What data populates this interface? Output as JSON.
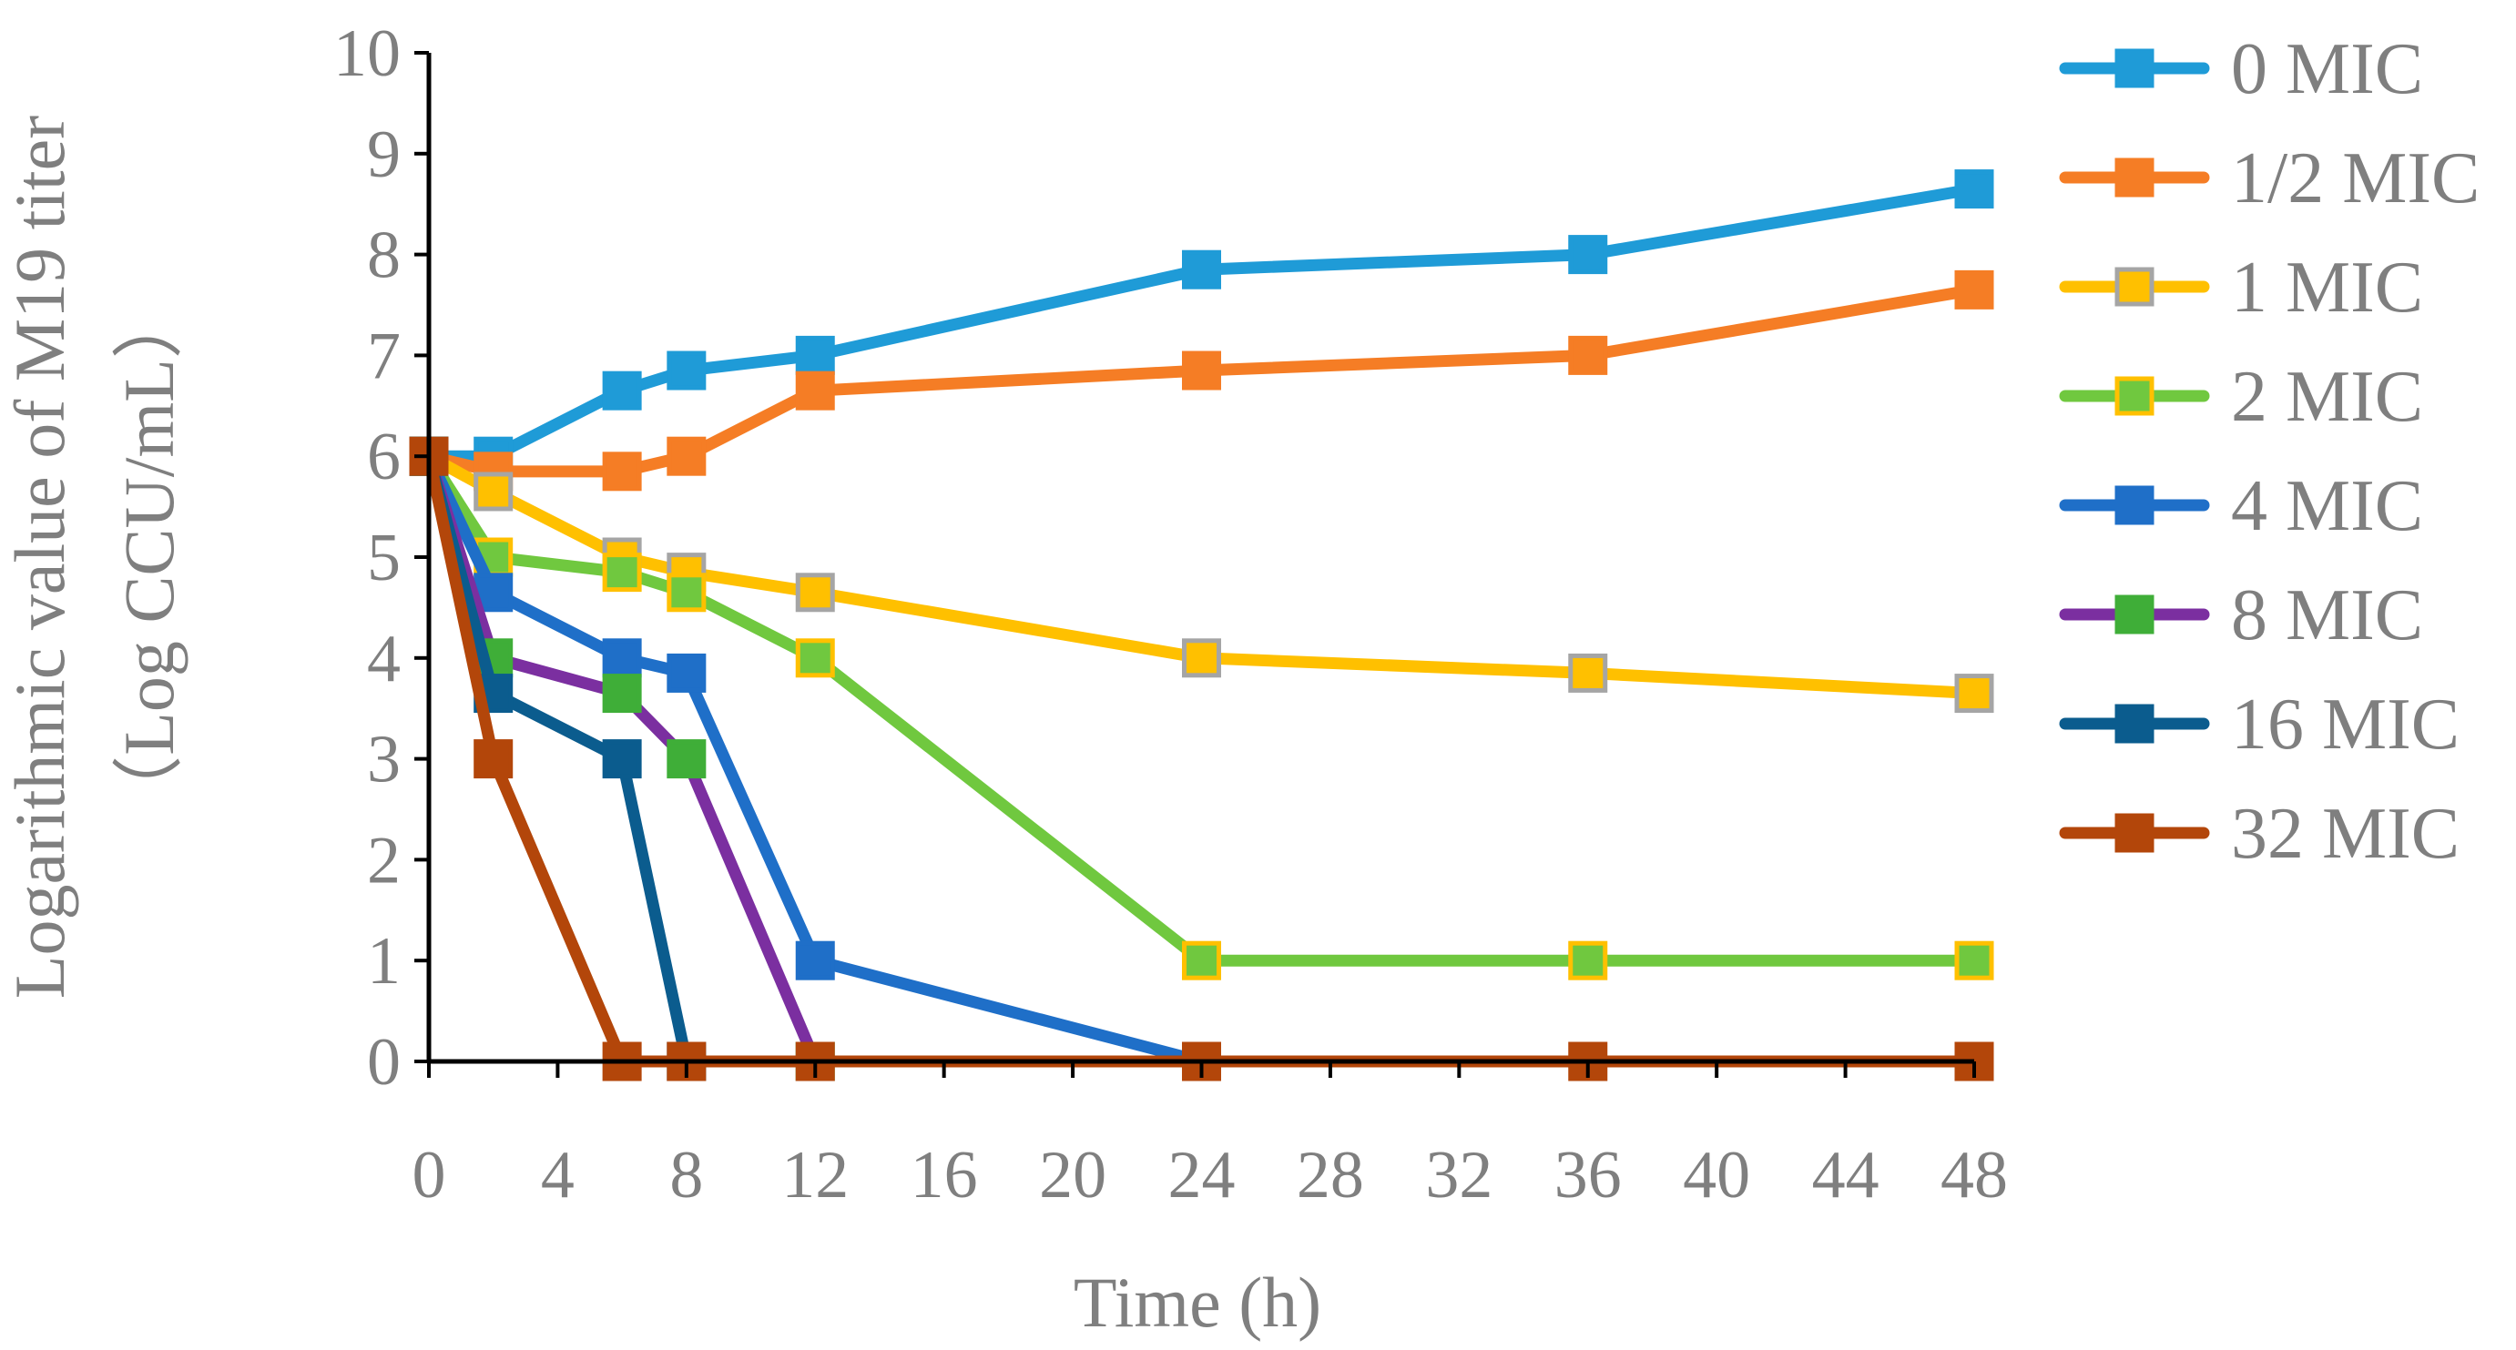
{
  "chart_data": {
    "type": "line",
    "title": "",
    "xlabel": "Time (h)",
    "ylabel_line1": "Logarithmic value of M19 titer",
    "ylabel_line2": "（Log CCU/mL）",
    "xlim": [
      0,
      48
    ],
    "ylim": [
      0,
      10
    ],
    "x_ticks": [
      "0",
      "4",
      "8",
      "12",
      "16",
      "20",
      "24",
      "28",
      "32",
      "36",
      "40",
      "44",
      "48"
    ],
    "y_ticks": [
      "0",
      "1",
      "2",
      "3",
      "4",
      "5",
      "6",
      "7",
      "8",
      "9",
      "10"
    ],
    "grid": false,
    "legend_position": "right",
    "series": [
      {
        "name": "0 MIC",
        "line_color": "#1f9bd7",
        "marker_fill": "#1f9bd7",
        "marker_edge": "#1f9bd7",
        "x": [
          0,
          2,
          6,
          8,
          12,
          24,
          36,
          48
        ],
        "y": [
          6,
          6,
          6.65,
          6.85,
          7,
          7.85,
          8,
          8.65
        ]
      },
      {
        "name": "1/2 MIC",
        "line_color": "#f57d25",
        "marker_fill": "#f57d25",
        "marker_edge": "#f57d25",
        "x": [
          0,
          2,
          6,
          8,
          12,
          24,
          36,
          48
        ],
        "y": [
          6,
          5.85,
          5.85,
          6,
          6.65,
          6.85,
          7,
          7.65
        ]
      },
      {
        "name": "1 MIC",
        "line_color": "#ffc000",
        "marker_fill": "#ffc000",
        "marker_edge": "#a5a5a5",
        "x": [
          0,
          2,
          6,
          8,
          12,
          24,
          36,
          48
        ],
        "y": [
          6,
          5.65,
          5,
          4.85,
          4.65,
          4,
          3.85,
          3.65
        ]
      },
      {
        "name": "2 MIC",
        "line_color": "#70c83f",
        "marker_fill": "#70c83f",
        "marker_edge": "#ffc000",
        "x": [
          0,
          2,
          6,
          8,
          12,
          24,
          36,
          48
        ],
        "y": [
          6,
          5,
          4.85,
          4.65,
          4,
          1,
          1,
          1
        ]
      },
      {
        "name": "4 MIC",
        "line_color": "#1f6fc8",
        "marker_fill": "#1f6fc8",
        "marker_edge": "#1f6fc8",
        "x": [
          0,
          2,
          6,
          8,
          12,
          24
        ],
        "y": [
          6,
          4.65,
          4,
          3.85,
          1,
          0
        ]
      },
      {
        "name": "8 MIC",
        "line_color": "#7b2fa0",
        "marker_fill": "#3fae38",
        "marker_edge": "#3fae38",
        "x": [
          0,
          2,
          6,
          8,
          12
        ],
        "y": [
          6,
          4,
          3.65,
          3,
          0
        ]
      },
      {
        "name": "16 MIC",
        "line_color": "#0b5c8e",
        "marker_fill": "#0b5c8e",
        "marker_edge": "#0b5c8e",
        "x": [
          0,
          2,
          6,
          8
        ],
        "y": [
          6,
          3.65,
          3,
          0
        ]
      },
      {
        "name": "32 MIC",
        "line_color": "#b3460a",
        "marker_fill": "#b3460a",
        "marker_edge": "#b3460a",
        "x": [
          0,
          2,
          6,
          8,
          12,
          24,
          36,
          48
        ],
        "y": [
          6,
          3,
          0,
          0,
          0,
          0,
          0,
          0
        ]
      }
    ]
  }
}
